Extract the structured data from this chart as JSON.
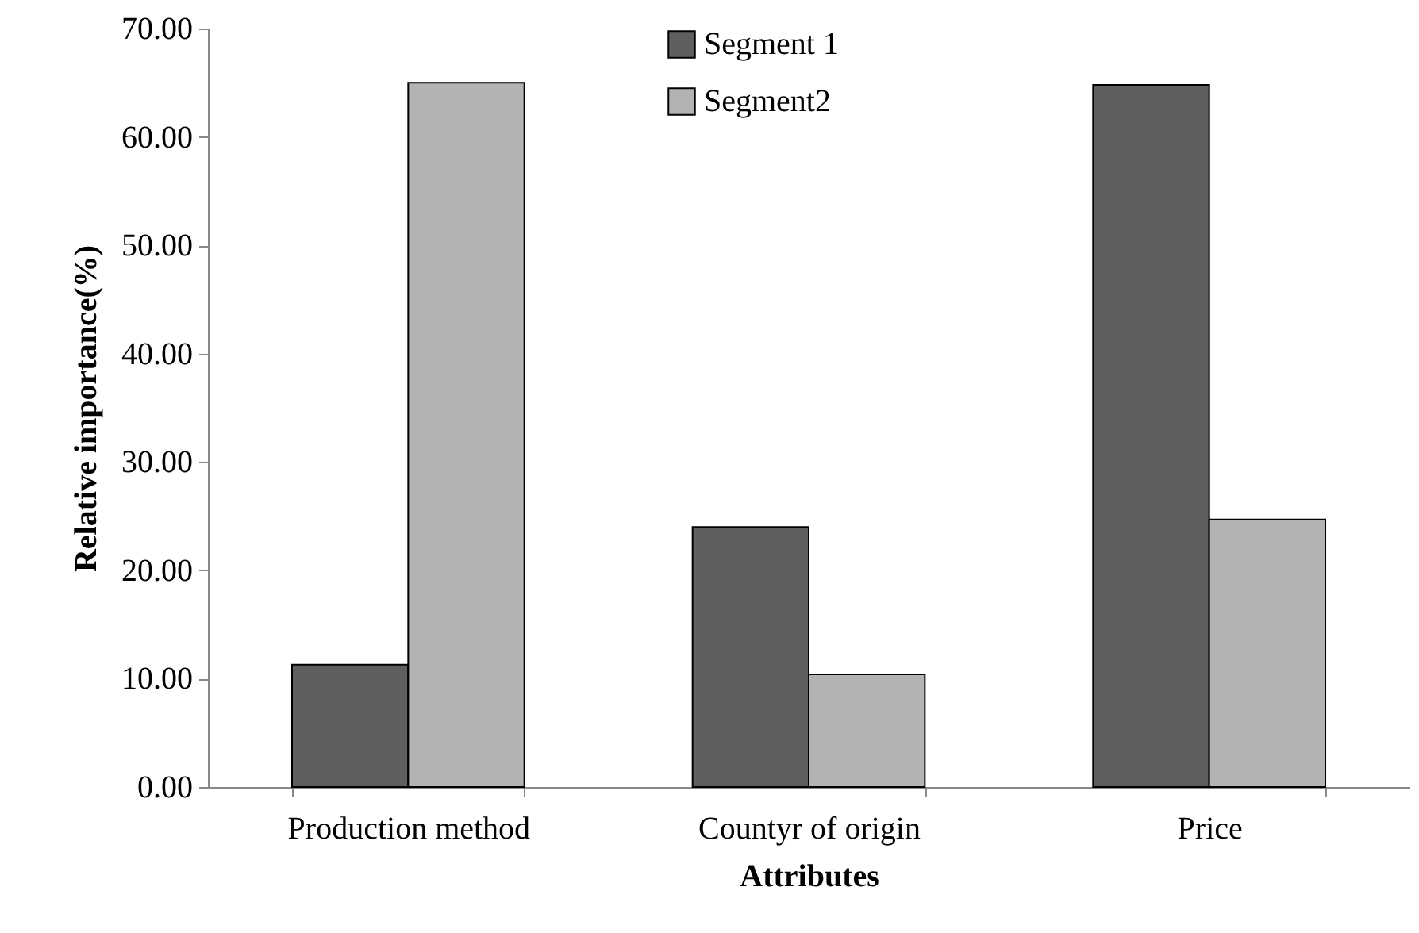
{
  "chart_data": {
    "type": "bar",
    "xlabel": "Attributes",
    "ylabel": "Relative importance(%)",
    "categories": [
      "Production method",
      "Countyr of origin",
      "Price"
    ],
    "series": [
      {
        "name": "Segment 1",
        "color": "#5f5f5f",
        "values": [
          11.3,
          24.0,
          64.8
        ]
      },
      {
        "name": "Segment2",
        "color": "#b3b3b3",
        "values": [
          65.0,
          10.4,
          24.7
        ]
      }
    ],
    "ylim": [
      0,
      70
    ],
    "yticks": [
      {
        "value": 0,
        "label": "0.00"
      },
      {
        "value": 10,
        "label": "10.00"
      },
      {
        "value": 20,
        "label": "20.00"
      },
      {
        "value": 30,
        "label": "30.00"
      },
      {
        "value": 40,
        "label": "40.00"
      },
      {
        "value": 50,
        "label": "50.00"
      },
      {
        "value": 60,
        "label": "60.00"
      },
      {
        "value": 70,
        "label": "70.00"
      }
    ],
    "legend": "top",
    "grid": false
  }
}
